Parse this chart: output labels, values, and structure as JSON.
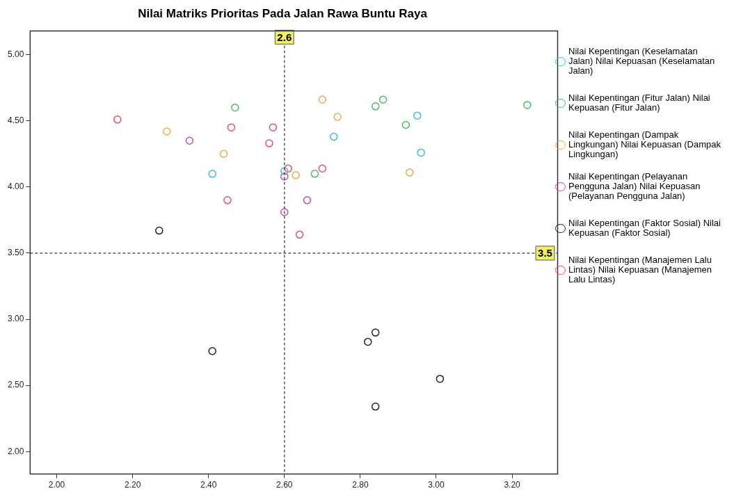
{
  "chart_data": {
    "type": "scatter",
    "title": "Nilai Matriks Prioritas Pada Jalan Rawa Buntu Raya",
    "marker": "circle",
    "legend": "right",
    "grid": false,
    "xlim": [
      1.93,
      3.32
    ],
    "ylim": [
      1.83,
      5.18
    ],
    "xticks": [
      {
        "value": 2,
        "label": "2.00"
      },
      {
        "value": 2.2,
        "label": "2.20"
      },
      {
        "value": 2.4,
        "label": "2.40"
      },
      {
        "value": 2.6,
        "label": "2.60"
      },
      {
        "value": 2.8,
        "label": "2.80"
      },
      {
        "value": 3,
        "label": "3.00"
      },
      {
        "value": 3.2,
        "label": "3.20"
      }
    ],
    "yticks": [
      {
        "value": 2,
        "label": "2.00"
      },
      {
        "value": 2.5,
        "label": "2.50"
      },
      {
        "value": 3,
        "label": "3.00"
      },
      {
        "value": 3.5,
        "label": "3.50"
      },
      {
        "value": 4,
        "label": "4.00"
      },
      {
        "value": 4.5,
        "label": "4.50"
      },
      {
        "value": 5,
        "label": "5.00"
      }
    ],
    "ref_lines": [
      {
        "axis": "x",
        "value": 2.6,
        "label": "2.6",
        "color": "#555555",
        "line_style": "dashed"
      },
      {
        "axis": "y",
        "value": 3.5,
        "label": "3.5",
        "color": "#555555",
        "line_style": "dashed"
      }
    ],
    "series": [
      {
        "name": "Nilai Kepentingan (Keselamatan Jalan) Nilai Kepuasan (Keselamatan Jalan)",
        "color": "#3cbfd0",
        "x": [
          2.41,
          2.6,
          2.73,
          2.95,
          2.96
        ],
        "values": [
          4.1,
          4.12,
          4.38,
          4.54,
          4.26
        ]
      },
      {
        "name": "Nilai Kepentingan (Fitur Jalan) Nilai Kepuasan (Fitur Jalan)",
        "color": "#4fb863",
        "x": [
          2.47,
          2.84,
          2.86,
          2.92,
          2.68,
          3.24
        ],
        "values": [
          4.6,
          4.61,
          4.66,
          4.47,
          4.1,
          4.62
        ]
      },
      {
        "name": "Nilai Kepentingan (Dampak Lingkungan) Nilai Kepuasan (Dampak Lingkungan)",
        "color": "#eea846",
        "x": [
          2.29,
          2.44,
          2.7,
          2.74,
          2.63,
          2.93
        ],
        "values": [
          4.42,
          4.25,
          4.66,
          4.53,
          4.09,
          4.11
        ]
      },
      {
        "name": "Nilai Kepentingan (Pelayanan Pengguna Jalan) Nilai Kepuasan (Pelayanan Pengguna Jalan)",
        "color": "#c0509c",
        "x": [
          2.35,
          2.57,
          2.6,
          2.66,
          2.6,
          2.64
        ],
        "values": [
          4.35,
          4.45,
          4.08,
          3.9,
          3.81,
          3.64
        ]
      },
      {
        "name": "Nilai Kepentingan (Faktor Sosial) Nilai Kepuasan (Faktor Sosial)",
        "color": "#222222",
        "x": [
          2.27,
          2.41,
          2.84,
          2.82,
          3.01,
          2.84
        ],
        "values": [
          3.67,
          2.76,
          2.9,
          2.83,
          2.55,
          2.34
        ]
      },
      {
        "name": "Nilai Kepentingan (Manajemen Lalu Lintas) Nilai Kepuasan (Manajemen Lalu Lintas)",
        "color": "#e0506a",
        "x": [
          2.16,
          2.46,
          2.56,
          2.45,
          2.61,
          2.7
        ],
        "values": [
          4.51,
          4.45,
          4.33,
          3.9,
          4.14,
          4.14
        ]
      }
    ]
  }
}
